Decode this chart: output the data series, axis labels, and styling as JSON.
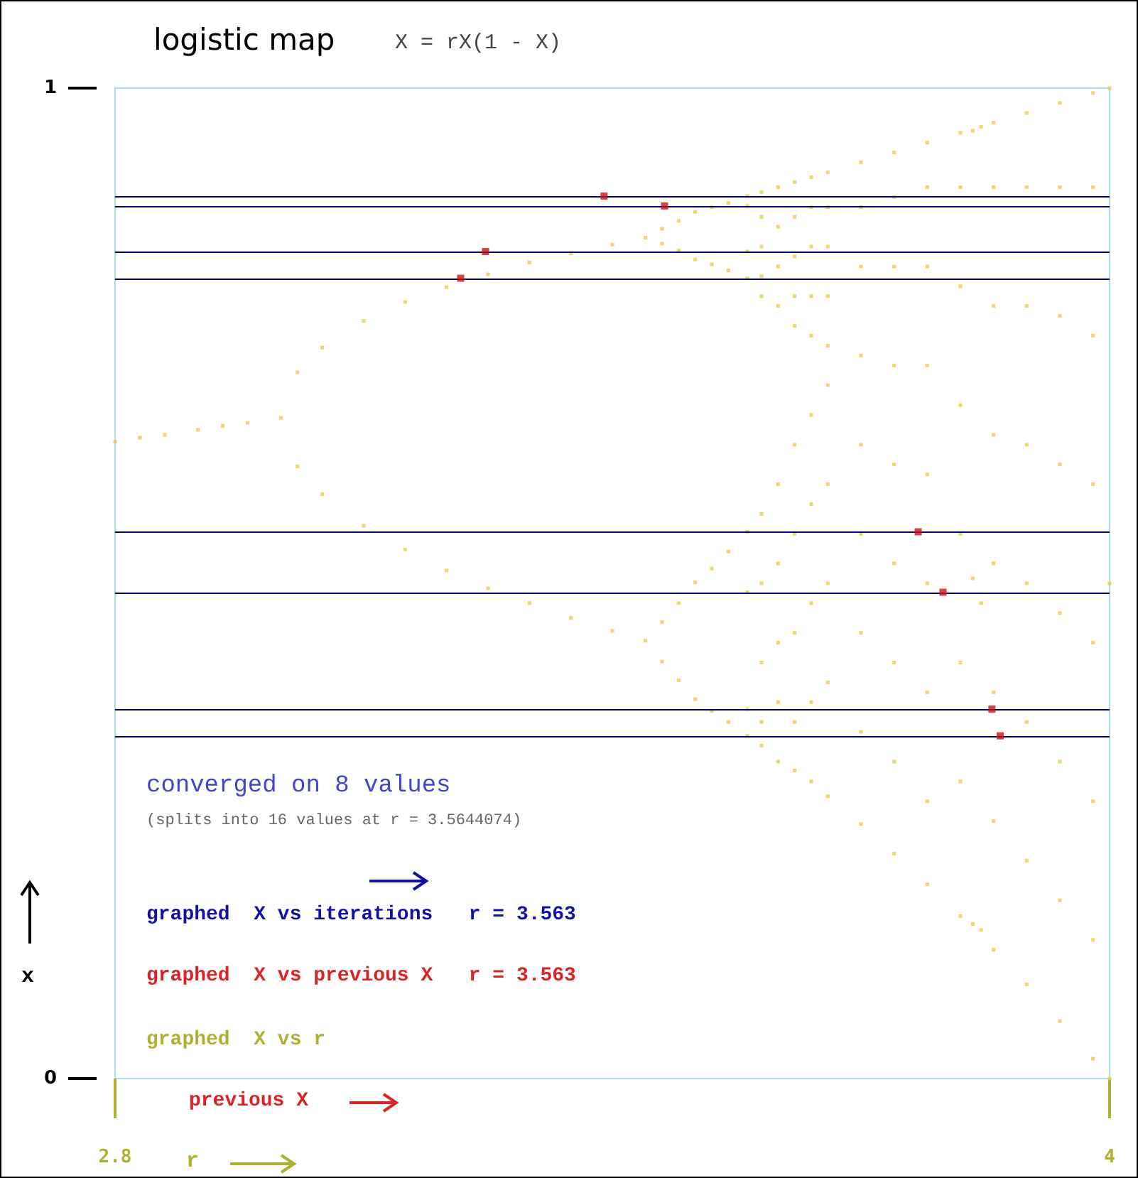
{
  "chart_data": {
    "type": "scatter",
    "title": "logistic map",
    "subtitle": "X = rX(1 - X)",
    "xlabel": "r",
    "ylabel": "x",
    "annotations": [
      "converged on 8 values",
      "(splits into 16 values at r = 3.5644074)",
      "graphed  X vs iterations   r = 3.563",
      "graphed  X vs previous X   r = 3.563",
      "graphed  X vs r",
      "previous X"
    ],
    "xlim": [
      2.8,
      4
    ],
    "xticks": [
      2.8,
      4
    ],
    "ylim": [
      0,
      1
    ],
    "yticks": [
      0,
      1
    ],
    "marker": "square",
    "ref_lines": [
      {
        "axis": "y",
        "value": 0.891,
        "color": "#000066"
      },
      {
        "axis": "y",
        "value": 0.881,
        "color": "#000066"
      },
      {
        "axis": "y",
        "value": 0.835,
        "color": "#000066"
      },
      {
        "axis": "y",
        "value": 0.808,
        "color": "#000066"
      },
      {
        "axis": "y",
        "value": 0.552,
        "color": "#000066"
      },
      {
        "axis": "y",
        "value": 0.491,
        "color": "#000066"
      },
      {
        "axis": "y",
        "value": 0.373,
        "color": "#000066"
      },
      {
        "axis": "y",
        "value": 0.346,
        "color": "#000066"
      }
    ],
    "series": [
      {
        "color": "#ecc94b",
        "x": [
          2.8,
          2.83,
          2.86,
          2.9,
          2.93,
          2.96,
          3.0,
          3.02,
          3.02,
          3.05,
          3.05,
          3.1,
          3.1,
          3.15,
          3.15,
          3.2,
          3.2,
          3.25,
          3.25,
          3.3,
          3.3,
          3.35,
          3.35,
          3.4,
          3.4,
          3.44,
          3.44,
          3.46,
          3.46,
          3.46,
          3.46,
          3.48,
          3.48,
          3.48,
          3.48,
          3.5,
          3.5,
          3.5,
          3.5,
          3.52,
          3.52,
          3.52,
          3.52,
          3.54,
          3.54,
          3.54,
          3.54,
          3.563,
          3.563,
          3.563,
          3.563,
          3.563,
          3.563,
          3.563,
          3.563,
          3.58,
          3.58,
          3.58,
          3.58,
          3.58,
          3.58,
          3.58,
          3.58,
          3.58,
          3.58,
          3.6,
          3.6,
          3.6,
          3.6,
          3.6,
          3.6,
          3.6,
          3.6,
          3.6,
          3.62,
          3.62,
          3.62,
          3.62,
          3.62,
          3.62,
          3.62,
          3.62,
          3.62,
          3.62,
          3.64,
          3.64,
          3.64,
          3.64,
          3.64,
          3.64,
          3.64,
          3.64,
          3.64,
          3.64,
          3.66,
          3.66,
          3.66,
          3.66,
          3.66,
          3.66,
          3.66,
          3.66,
          3.66,
          3.66,
          3.7,
          3.7,
          3.7,
          3.7,
          3.7,
          3.7,
          3.7,
          3.7,
          3.7,
          3.74,
          3.74,
          3.74,
          3.74,
          3.74,
          3.74,
          3.74,
          3.74,
          3.74,
          3.78,
          3.78,
          3.78,
          3.78,
          3.78,
          3.78,
          3.78,
          3.78,
          3.78,
          3.82,
          3.82,
          3.82,
          3.82,
          3.82,
          3.82,
          3.82,
          3.82,
          3.835,
          3.835,
          3.835,
          3.845,
          3.845,
          3.845,
          3.86,
          3.86,
          3.86,
          3.86,
          3.86,
          3.86,
          3.86,
          3.86,
          3.9,
          3.9,
          3.9,
          3.9,
          3.9,
          3.9,
          3.9,
          3.9,
          3.94,
          3.94,
          3.94,
          3.94,
          3.94,
          3.94,
          3.94,
          3.94,
          3.98,
          3.98,
          3.98,
          3.98,
          3.98,
          3.98,
          3.98,
          3.98,
          4.0,
          4.0,
          4.0
        ],
        "values": [
          0.643,
          0.647,
          0.65,
          0.655,
          0.659,
          0.662,
          0.667,
          0.713,
          0.618,
          0.738,
          0.59,
          0.765,
          0.558,
          0.784,
          0.534,
          0.799,
          0.513,
          0.812,
          0.495,
          0.824,
          0.48,
          0.833,
          0.465,
          0.842,
          0.452,
          0.849,
          0.442,
          0.858,
          0.421,
          0.843,
          0.461,
          0.866,
          0.402,
          0.836,
          0.48,
          0.875,
          0.383,
          0.827,
          0.501,
          0.88,
          0.371,
          0.822,
          0.515,
          0.884,
          0.36,
          0.816,
          0.532,
          0.891,
          0.881,
          0.835,
          0.808,
          0.552,
          0.491,
          0.373,
          0.346,
          0.895,
          0.87,
          0.84,
          0.81,
          0.79,
          0.57,
          0.5,
          0.42,
          0.36,
          0.336,
          0.9,
          0.86,
          0.82,
          0.78,
          0.6,
          0.52,
          0.44,
          0.38,
          0.32,
          0.905,
          0.87,
          0.83,
          0.79,
          0.76,
          0.64,
          0.55,
          0.45,
          0.36,
          0.311,
          0.91,
          0.88,
          0.84,
          0.79,
          0.75,
          0.67,
          0.58,
          0.48,
          0.38,
          0.3,
          0.915,
          0.88,
          0.84,
          0.79,
          0.74,
          0.7,
          0.6,
          0.5,
          0.4,
          0.285,
          0.925,
          0.88,
          0.82,
          0.73,
          0.64,
          0.55,
          0.45,
          0.35,
          0.257,
          0.935,
          0.89,
          0.82,
          0.72,
          0.62,
          0.52,
          0.42,
          0.32,
          0.227,
          0.945,
          0.9,
          0.82,
          0.72,
          0.61,
          0.5,
          0.39,
          0.28,
          0.196,
          0.955,
          0.9,
          0.8,
          0.68,
          0.55,
          0.42,
          0.3,
          0.164,
          0.957,
          0.505,
          0.156,
          0.961,
          0.48,
          0.15,
          0.965,
          0.9,
          0.78,
          0.65,
          0.52,
          0.39,
          0.26,
          0.13,
          0.975,
          0.9,
          0.78,
          0.64,
          0.5,
          0.36,
          0.22,
          0.095,
          0.985,
          0.9,
          0.77,
          0.62,
          0.47,
          0.32,
          0.18,
          0.058,
          0.995,
          0.9,
          0.75,
          0.6,
          0.44,
          0.28,
          0.14,
          0.02,
          1.0,
          0.5,
          0.0
        ]
      },
      {
        "color": "#cc1111",
        "x": [
          3.39,
          3.463,
          3.247,
          3.217,
          3.769,
          3.799,
          3.858,
          3.868
        ],
        "values": [
          0.891,
          0.881,
          0.835,
          0.808,
          0.552,
          0.491,
          0.373,
          0.346
        ]
      }
    ]
  }
}
